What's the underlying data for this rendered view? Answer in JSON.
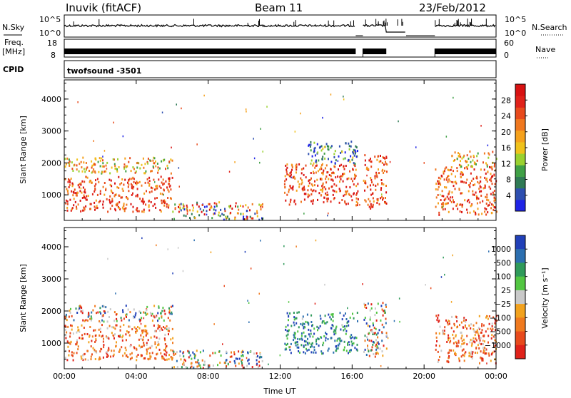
{
  "header": {
    "station": "Inuvik (fitACF)",
    "beam": "Beam 11",
    "date": "23/Feb/2012"
  },
  "strips": {
    "nsky_label": "N.Sky",
    "nsky_ticks": [
      "10^5",
      "10^0"
    ],
    "nsearch_label": "N.Search",
    "freq_label_1": "Freq.",
    "freq_label_2": "[MHz]",
    "freq_ticks": [
      "18",
      "8"
    ],
    "nave_label": "Nave",
    "nave_ticks": [
      "60",
      "0"
    ],
    "cpid_label": "CPID",
    "cpid_value": "twofsound -3501"
  },
  "chart_data": [
    {
      "type": "heatmap",
      "panel": "power",
      "ylabel": "Slant Range [km]",
      "xlabel": "",
      "x_ticks": [
        "00:00",
        "04:00",
        "08:00",
        "12:00",
        "16:00",
        "20:00",
        "00:00"
      ],
      "y_ticks": [
        1000,
        2000,
        3000,
        4000
      ],
      "ylim": [
        200,
        4600
      ],
      "xlim_hours": [
        0,
        24
      ],
      "colorbar": {
        "label": "Power [dB]",
        "ticks": [
          "4",
          "8",
          "12",
          "16",
          "20",
          "24",
          "28"
        ],
        "colors": [
          "#1f24e6",
          "#2e4fb0",
          "#2f7a55",
          "#3fa046",
          "#9ad12f",
          "#f0c21b",
          "#f5a11c",
          "#f0781f",
          "#e84a1c",
          "#e0221a",
          "#d81212"
        ]
      },
      "regions": [
        {
          "t0": 0.0,
          "t1": 6.0,
          "r0": 500,
          "r1": 1600,
          "level": "high"
        },
        {
          "t0": 0.0,
          "t1": 6.0,
          "r0": 1700,
          "r1": 2200,
          "level": "medium"
        },
        {
          "t0": 6.0,
          "t1": 11.0,
          "r0": 250,
          "r1": 800,
          "level": "mixed"
        },
        {
          "t0": 12.2,
          "t1": 16.3,
          "r0": 700,
          "r1": 2000,
          "level": "high"
        },
        {
          "t0": 13.5,
          "t1": 16.3,
          "r0": 2000,
          "r1": 2700,
          "level": "low"
        },
        {
          "t0": 16.6,
          "t1": 17.9,
          "r0": 600,
          "r1": 2300,
          "level": "high"
        },
        {
          "t0": 20.6,
          "t1": 24.0,
          "r0": 400,
          "r1": 1900,
          "level": "high"
        },
        {
          "t0": 21.5,
          "t1": 24.0,
          "r0": 1900,
          "r1": 2400,
          "level": "medium"
        }
      ]
    },
    {
      "type": "heatmap",
      "panel": "velocity",
      "ylabel": "Slant Range [km]",
      "xlabel": "Time UT",
      "x_ticks": [
        "00:00",
        "04:00",
        "08:00",
        "12:00",
        "16:00",
        "20:00",
        "00:00"
      ],
      "y_ticks": [
        1000,
        2000,
        3000,
        4000
      ],
      "ylim": [
        200,
        4600
      ],
      "xlim_hours": [
        0,
        24
      ],
      "colorbar": {
        "label": "Velocity [m s⁻¹]",
        "ticks": [
          "1000",
          "500",
          "100",
          "25",
          "−25",
          "−100",
          "−500",
          "−1000"
        ],
        "colors": [
          "#2140b8",
          "#2c6fb0",
          "#2f9a5a",
          "#53c642",
          "#c9c9c9",
          "#f2a21e",
          "#f07a1f",
          "#e84a1c",
          "#e0221a"
        ]
      },
      "regions": [
        {
          "t0": 0.0,
          "t1": 6.0,
          "r0": 500,
          "r1": 1600,
          "level": "negative"
        },
        {
          "t0": 0.0,
          "t1": 6.0,
          "r0": 1700,
          "r1": 2200,
          "level": "mixed"
        },
        {
          "t0": 6.0,
          "t1": 11.0,
          "r0": 250,
          "r1": 800,
          "level": "mixed"
        },
        {
          "t0": 12.2,
          "t1": 16.3,
          "r0": 700,
          "r1": 2000,
          "level": "positive"
        },
        {
          "t0": 16.6,
          "t1": 17.9,
          "r0": 600,
          "r1": 2300,
          "level": "mixed"
        },
        {
          "t0": 20.6,
          "t1": 24.0,
          "r0": 400,
          "r1": 1900,
          "level": "negative"
        }
      ]
    }
  ]
}
